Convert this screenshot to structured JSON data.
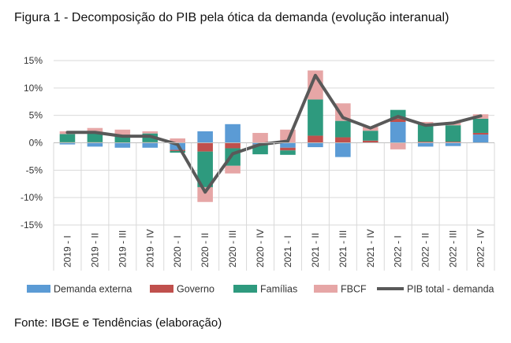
{
  "figure_title": "Figura 1 - Decomposição do PIB pela ótica da demanda (evolução interanual)",
  "source_note": "Fonte: IBGE e Tendências (elaboração)",
  "chart_data": {
    "type": "bar",
    "stacked": true,
    "title": "Figura 1 - Decomposição do PIB pela ótica da demanda (evolução interanual)",
    "ylim": [
      -15,
      15
    ],
    "yticks": [
      -15,
      -10,
      -5,
      0,
      5,
      10,
      15
    ],
    "ytick_labels": [
      "-15%",
      "-10%",
      "-5%",
      "0%",
      "5%",
      "10%",
      "15%"
    ],
    "grid": true,
    "legend_position": "bottom",
    "categories": [
      "2019 - I",
      "2019 - II",
      "2019 - III",
      "2019 - IV",
      "2020 - I",
      "2020 - II",
      "2020 - III",
      "2020 - IV",
      "2021 - I",
      "2021 - II",
      "2021 - III",
      "2021 - IV",
      "2022 - I",
      "2022 - II",
      "2022 - III",
      "2022 - IV"
    ],
    "series": [
      {
        "name": "Demanda externa",
        "type": "bar",
        "color": "#5B9BD5",
        "values": [
          -0.3,
          -0.7,
          -0.9,
          -0.9,
          -1.3,
          2.1,
          3.4,
          -0.3,
          -0.9,
          -0.8,
          -2.6,
          0.0,
          3.8,
          -0.7,
          -0.6,
          1.5
        ]
      },
      {
        "name": "Governo",
        "type": "bar",
        "color": "#C0504D",
        "values": [
          0.1,
          0.1,
          0.0,
          0.1,
          -0.2,
          -1.6,
          -1.0,
          -0.1,
          -0.5,
          1.3,
          1.0,
          0.4,
          0.6,
          0.2,
          0.2,
          0.3
        ]
      },
      {
        "name": "Famílias",
        "type": "bar",
        "color": "#2E9A7E",
        "values": [
          1.5,
          1.8,
          1.2,
          1.6,
          -0.3,
          -6.5,
          -3.2,
          -1.7,
          -0.8,
          6.6,
          3.0,
          1.8,
          1.6,
          3.2,
          3.0,
          2.6
        ]
      },
      {
        "name": "FBCF",
        "type": "bar",
        "color": "#E6A6A6",
        "values": [
          0.5,
          0.8,
          1.2,
          0.4,
          0.8,
          -2.7,
          -1.4,
          1.8,
          2.4,
          5.3,
          3.2,
          0.7,
          -1.2,
          0.4,
          0.6,
          0.8
        ]
      },
      {
        "name": "PIB total - demanda",
        "type": "line",
        "color": "#595959",
        "values": [
          1.9,
          1.9,
          1.2,
          1.2,
          -0.3,
          -9.0,
          -2.0,
          -0.3,
          0.3,
          12.3,
          4.6,
          2.7,
          4.8,
          3.2,
          3.6,
          4.9
        ]
      }
    ]
  }
}
